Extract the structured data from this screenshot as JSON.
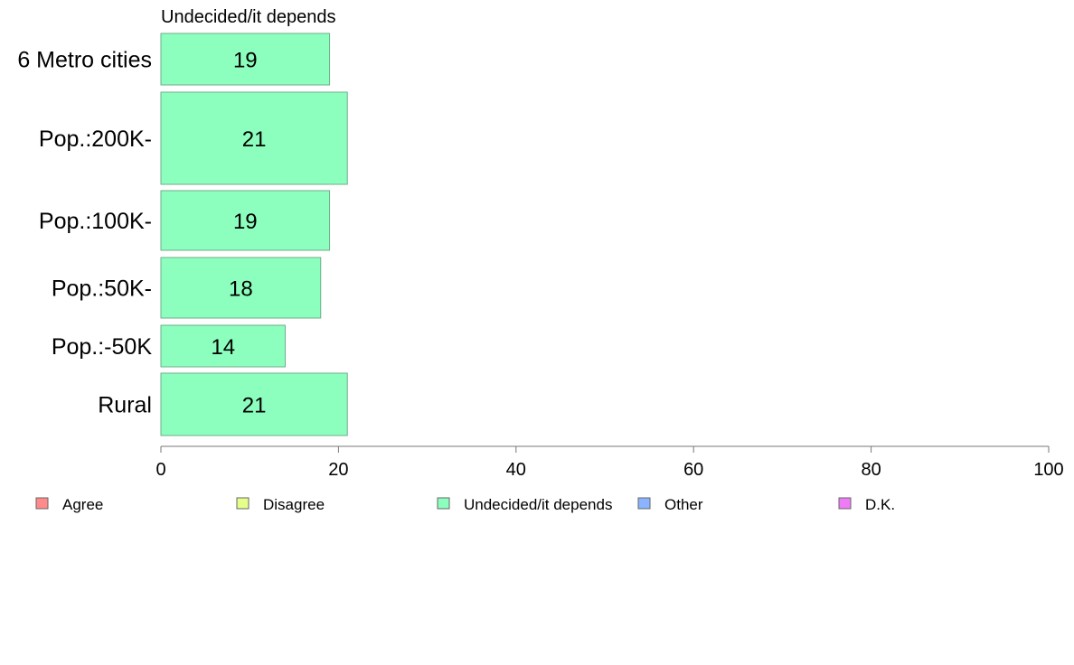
{
  "chart_data": {
    "type": "bar",
    "orientation": "horizontal",
    "title": "Undecided/it depends",
    "categories": [
      "6 Metro cities",
      "Pop.:200K-",
      "Pop.:100K-",
      "Pop.:50K-",
      "Pop.:-50K",
      "Rural"
    ],
    "values": [
      19,
      21,
      19,
      18,
      14,
      21
    ],
    "series_color": "#8cffbe",
    "xlim": [
      0,
      100
    ],
    "xticks": [
      0,
      20,
      40,
      60,
      80,
      100
    ],
    "grid": false,
    "legend_position": "bottom",
    "legend": [
      {
        "label": "Agree",
        "color": "#ff8a8a"
      },
      {
        "label": "Disagree",
        "color": "#e6ff8a"
      },
      {
        "label": "Undecided/it depends",
        "color": "#8cffbe"
      },
      {
        "label": "Other",
        "color": "#8ab4ff"
      },
      {
        "label": "D.K.",
        "color": "#f07cf5"
      }
    ]
  }
}
